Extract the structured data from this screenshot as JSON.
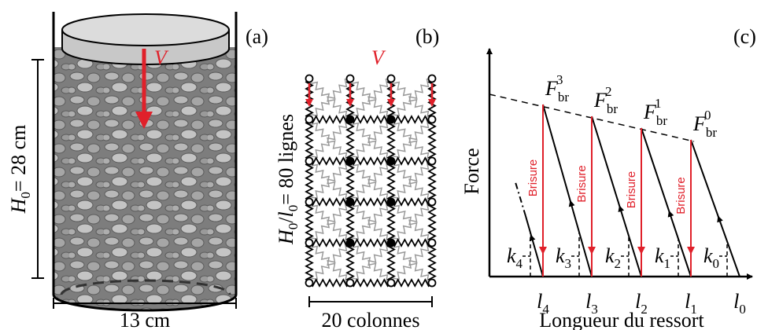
{
  "panel_a": {
    "tag": "(a)",
    "velocity": "V",
    "height": {
      "symbol": "H",
      "sub": "0",
      "value": "= 28 cm"
    },
    "width": "13 cm"
  },
  "panel_b": {
    "tag": "(b)",
    "velocity": "V",
    "height": {
      "symbol": "H",
      "sub": "0",
      "sep": "/",
      "symbol2": "l",
      "sub2": "0",
      "value": "= 80 lignes"
    },
    "width": "20 colonnes"
  },
  "panel_c": {
    "tag": "(c)",
    "y_label": "Force",
    "x_label": "Longueur du ressort",
    "forces": [
      {
        "symbol": "F",
        "sub": "br",
        "sup": "0"
      },
      {
        "symbol": "F",
        "sub": "br",
        "sup": "1"
      },
      {
        "symbol": "F",
        "sub": "br",
        "sup": "2"
      },
      {
        "symbol": "F",
        "sub": "br",
        "sup": "3"
      }
    ],
    "breaks": [
      "Brisure",
      "Brisure",
      "Brisure",
      "Brisure"
    ],
    "stiffness": [
      {
        "symbol": "k",
        "sub": "0"
      },
      {
        "symbol": "k",
        "sub": "1"
      },
      {
        "symbol": "k",
        "sub": "2"
      },
      {
        "symbol": "k",
        "sub": "3"
      },
      {
        "symbol": "k",
        "sub": "4"
      }
    ],
    "lengths": [
      {
        "symbol": "l",
        "sub": "0"
      },
      {
        "symbol": "l",
        "sub": "1"
      },
      {
        "symbol": "l",
        "sub": "2"
      },
      {
        "symbol": "l",
        "sub": "3"
      },
      {
        "symbol": "l",
        "sub": "4"
      }
    ]
  }
}
